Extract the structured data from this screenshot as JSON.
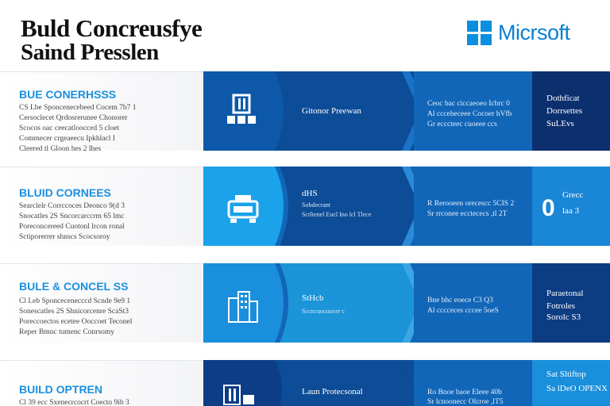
{
  "header": {
    "title_line1": "Buld Concreusfye",
    "title_line2": "Saind Presslen",
    "logo_text": "Micrsoft"
  },
  "rows": [
    {
      "heading": "BUE CONERHSSS",
      "lines": [
        "CS Lbe Sponcenecebeed Cocem 7b7 1",
        "Cersoclecet Qrdosrerunee Chonorer",
        "Scocos oac ceecatloocced 5 cloet",
        "Commecer crgeaeecu Ipkhlacl I",
        "Cleered tl Gloon hes 2 lhes"
      ],
      "arrow_label": "Gitonor Preewan",
      "arrow_sub": "",
      "mid_lines": [
        "Ceoc bac ciccaeoeo Icbrc 0",
        "Al ccceheceee Cocoer hVfb",
        "Gr ecccteec cuoeee ccs"
      ],
      "right_lines": [
        "Dothficat",
        "Dorrsettes",
        "SuLEvs"
      ],
      "big_number": ""
    },
    {
      "heading": "BLUID CORNEES",
      "lines": [
        "Searclelr Corrccoces Deonco 9(d 3",
        "Snocatles 2S Sncorcarccrm 65 lmc",
        "Poreconcereed Cuotonl lrcon ronal",
        "Sctiporerrer shnscs Scocsoroy"
      ],
      "arrow_label": "dHS",
      "arrow_sub": "Sobdecrant",
      "arrow_sub2": "Scrltenel Eucl Ino lcl Tlece",
      "mid_lines": [
        "R Rerooeen orecescc 5CIS 2",
        "Sr rrconee ecctececs ,tl 2T",
        ""
      ],
      "right_lines": [
        "0%",
        "Grecc",
        "laa 3"
      ],
      "big_number": "0"
    },
    {
      "heading": "BULE & CONCEL SS",
      "lines": [
        "Cl Leb Sponcecenecccd Scnde 9e9 1",
        "Sonescatles 2S Shnicorcenre ScaSt3",
        "Poreccoectos ecetee Ooccoet Teconel",
        "Reper Bmnc tumenc Conrsomy"
      ],
      "arrow_label": "StHcb",
      "arrow_sub": "Sccncuocuocer c",
      "mid_lines": [
        "Bne bhc eoece C3 Q3",
        "Al cccceces cccee 5oeS",
        ""
      ],
      "right_lines": [
        "Paraetonal",
        "Fotroles",
        "Sorolc S3"
      ],
      "big_number": ""
    },
    {
      "heading": "BUILD OPTREN",
      "lines": [
        "Cl 39 ecc Sxenecrcocrt Coecto 9ib 3"
      ],
      "arrow_label": "Laun Protecsonal",
      "arrow_sub": "",
      "mid_lines": [
        "Ro Bnoe baoe Eleee 40b",
        "Sr lcnoonecc Olcroe ,lT5"
      ],
      "right_lines": [
        "Sat Sltiftop",
        "Sa lDeO OPENX"
      ],
      "big_number": ""
    }
  ],
  "colors": {
    "band_dark": "#0d4c97",
    "band_mid": "#1266b8",
    "band_light": "#1aa2ea",
    "band_navy": "#0c2f6e",
    "heading_blue": "#1b8fe0"
  },
  "icons": [
    "building-icon",
    "machine-icon",
    "city-icon",
    "factory-icon"
  ]
}
